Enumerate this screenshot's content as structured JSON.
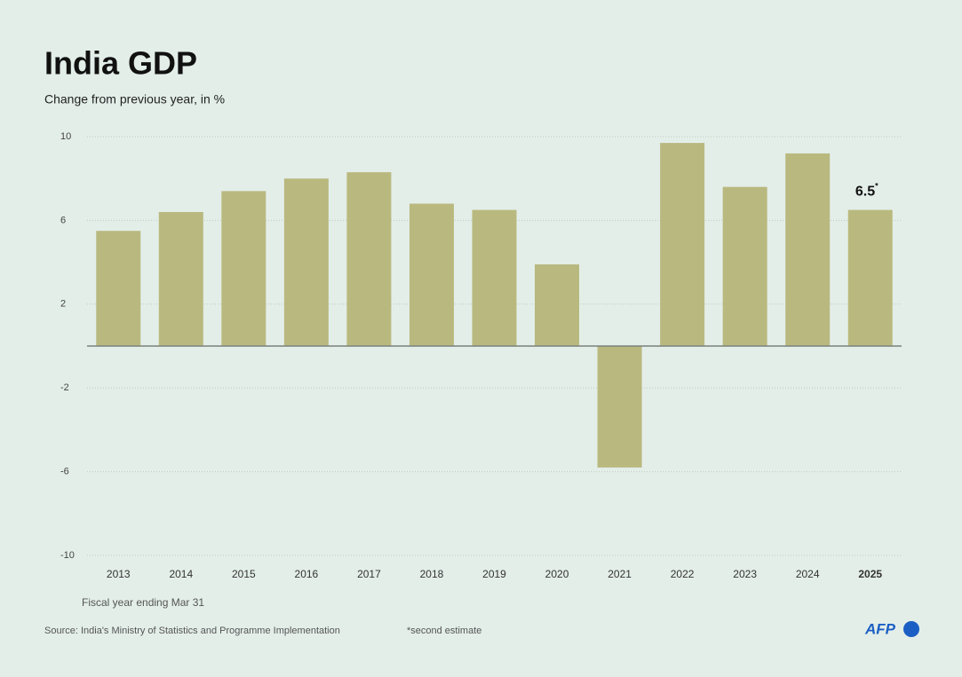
{
  "chart_data": {
    "type": "bar",
    "title": "India GDP",
    "subtitle": "Change from previous year, in %",
    "categories": [
      "2013",
      "2014",
      "2015",
      "2016",
      "2017",
      "2018",
      "2019",
      "2020",
      "2021",
      "2022",
      "2023",
      "2024",
      "2025"
    ],
    "values": [
      5.5,
      6.4,
      7.4,
      8.0,
      8.3,
      6.8,
      6.5,
      3.9,
      -5.8,
      9.7,
      7.6,
      9.2,
      6.5
    ],
    "value_labels": [
      null,
      null,
      null,
      null,
      null,
      null,
      null,
      null,
      null,
      null,
      null,
      null,
      "6.5"
    ],
    "value_label_marker": "*",
    "color": "#b9b97f",
    "ylim": [
      -10,
      10
    ],
    "yticks": [
      10,
      6,
      2,
      -2,
      -6,
      -10
    ],
    "grid": true,
    "note": "Fiscal year ending Mar 31",
    "source": "Source: India's Ministry of Statistics and Programme Implementation",
    "footnote": "*second estimate",
    "credit": "AFP"
  }
}
